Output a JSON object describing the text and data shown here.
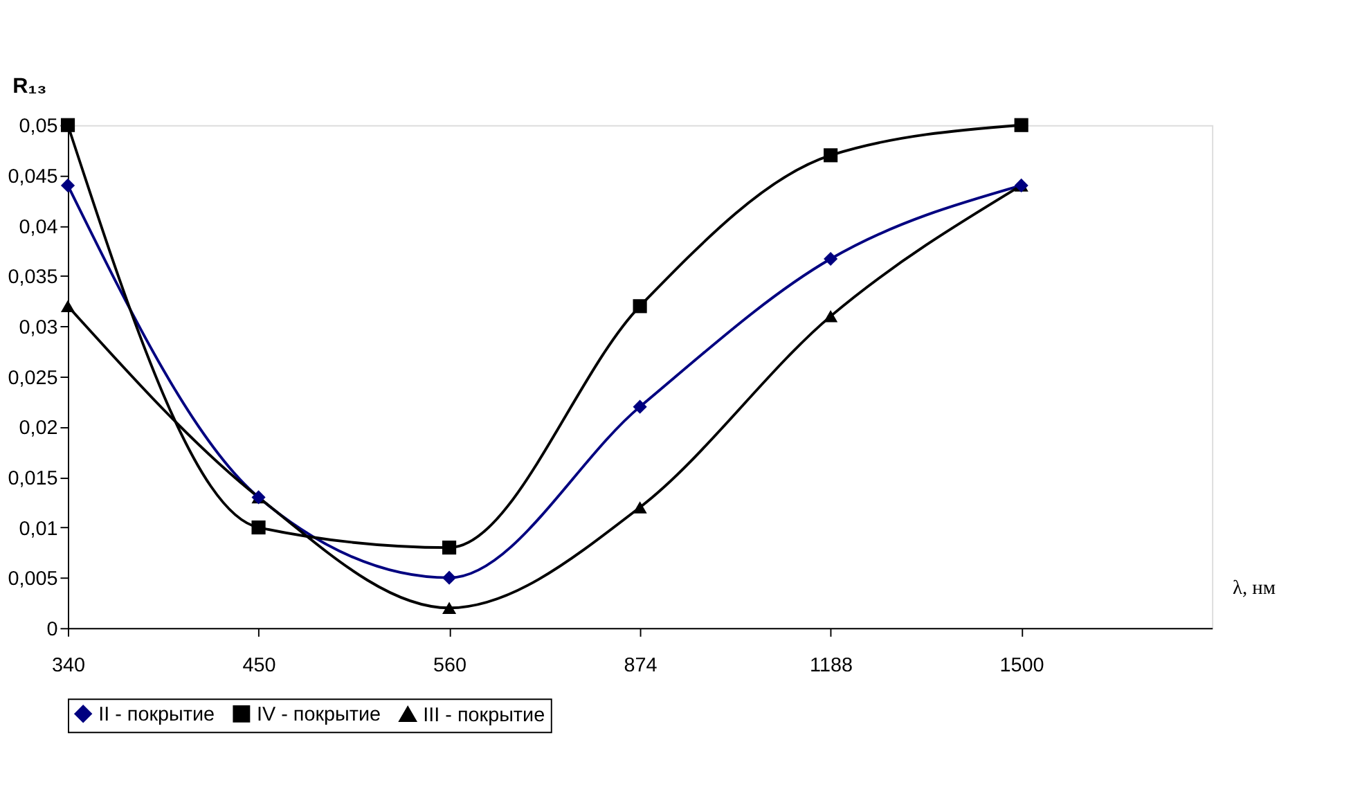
{
  "chart_data": {
    "type": "line",
    "ylabel": "R₁₃",
    "xlabel": "λ, нм",
    "categories": [
      "340",
      "450",
      "560",
      "874",
      "1188",
      "1500",
      null
    ],
    "series": [
      {
        "name": "II - покрытие",
        "color": "#000080",
        "marker": "diamond",
        "values": [
          0.044,
          0.013,
          0.005,
          0.022,
          0.0367,
          0.044,
          null
        ]
      },
      {
        "name": "IV - покрытие",
        "color": "#000000",
        "marker": "square",
        "values": [
          0.05,
          0.01,
          0.008,
          0.032,
          0.047,
          0.05,
          null
        ]
      },
      {
        "name": "III - покрытие",
        "color": "#000000",
        "marker": "triangle",
        "values": [
          0.032,
          0.013,
          0.002,
          0.012,
          0.031,
          0.044,
          null
        ]
      }
    ],
    "ylim": [
      0,
      0.05
    ],
    "yticks": [
      0,
      {
        "value": 0.005,
        "label": "0,005"
      },
      {
        "value": 0.01,
        "label": "0,01"
      },
      {
        "value": 0.015,
        "label": "0,015"
      },
      {
        "value": 0.02,
        "label": "0,02"
      },
      {
        "value": 0.025,
        "label": "0,025"
      },
      {
        "value": 0.03,
        "label": "0,03"
      },
      {
        "value": 0.035,
        "label": "0,035"
      },
      {
        "value": 0.04,
        "label": "0,04"
      },
      {
        "value": 0.045,
        "label": "0,045"
      },
      {
        "value": 0.05,
        "label": "0,05"
      }
    ],
    "grid": false,
    "legend": "bottom",
    "line_style": "solid"
  }
}
